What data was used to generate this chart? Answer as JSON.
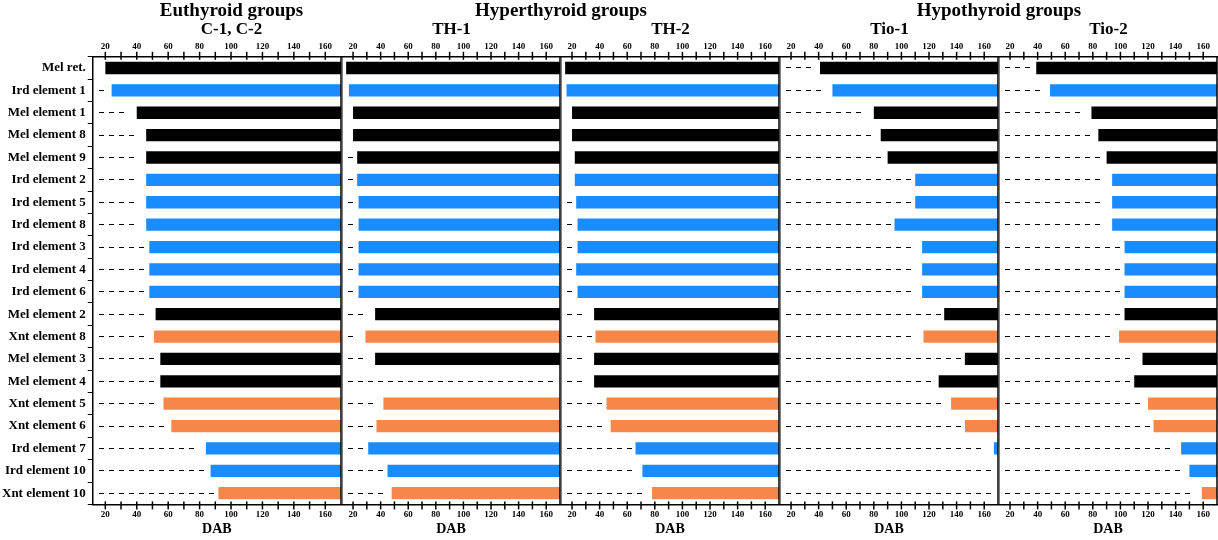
{
  "chart_data": [
    {
      "type": "bar",
      "orientation": "horizontal",
      "title": "Euthyroid groups",
      "subtitle": "C-1, C-2",
      "xlabel": "DAB",
      "categories": [
        "Mel ret.",
        "Ird element 1",
        "Mel element 1",
        "Mel element 8",
        "Mel element 9",
        "Ird element 2",
        "Ird element 5",
        "Ird element 8",
        "Ird element 3",
        "Ird element 4",
        "Ird element 6",
        "Mel element 2",
        "Xnt element 8",
        "Mel element 3",
        "Mel element 4",
        "Xnt element 5",
        "Xnt element 6",
        "Ird element 7",
        "Ird element 10",
        "Xnt element 10"
      ],
      "base": [
        20,
        24,
        40,
        46,
        46,
        46,
        46,
        46,
        48,
        48,
        48,
        52,
        51,
        55,
        55,
        57,
        62,
        84,
        87,
        92
      ],
      "values": [
        150,
        146,
        130,
        124,
        124,
        124,
        124,
        124,
        122,
        122,
        122,
        118,
        119,
        115,
        115,
        113,
        108,
        86,
        83,
        78
      ],
      "colors": [
        "#000000",
        "#1a8cff",
        "#000000",
        "#000000",
        "#000000",
        "#1a8cff",
        "#1a8cff",
        "#1a8cff",
        "#1a8cff",
        "#1a8cff",
        "#1a8cff",
        "#000000",
        "#f5874b",
        "#000000",
        "#000000",
        "#f5874b",
        "#f5874b",
        "#1a8cff",
        "#1a8cff",
        "#f5874b"
      ],
      "xlim": [
        12,
        170
      ],
      "xticks": [
        20,
        {
          "value": 30,
          "label": null
        },
        40,
        {
          "value": 50,
          "label": null
        },
        60,
        {
          "value": 70,
          "label": null
        },
        80,
        {
          "value": 90,
          "label": null
        },
        100,
        {
          "value": 110,
          "label": null
        },
        120,
        {
          "value": 130,
          "label": null
        },
        140,
        {
          "value": 150,
          "label": null
        },
        160
      ],
      "x2lim": [
        12,
        170
      ],
      "x2ticks": [
        20,
        {
          "value": 30,
          "label": null
        },
        40,
        {
          "value": 50,
          "label": null
        },
        60,
        {
          "value": 70,
          "label": null
        },
        80,
        {
          "value": 90,
          "label": null
        },
        100,
        {
          "value": 110,
          "label": null
        },
        120,
        {
          "value": 130,
          "label": null
        },
        140,
        {
          "value": 150,
          "label": null
        },
        160
      ]
    },
    {
      "type": "bar",
      "orientation": "horizontal",
      "title": "Hyperthyroid groups",
      "subtitle": "TH-1",
      "xlabel": "DAB",
      "tick_labels": "x",
      "categories": [
        null,
        null,
        null,
        null,
        null,
        null,
        null,
        null,
        null,
        null,
        null,
        null,
        null,
        null,
        null,
        null,
        null,
        null,
        null,
        null
      ],
      "base": [
        15,
        17,
        20,
        20,
        23,
        23,
        24,
        24,
        24,
        24,
        24,
        36,
        29,
        36,
        null,
        42,
        37,
        31,
        45,
        48
      ],
      "values": [
        155,
        153,
        150,
        150,
        147,
        147,
        146,
        146,
        146,
        146,
        146,
        134,
        141,
        134,
        null,
        128,
        133,
        139,
        125,
        122
      ],
      "colors": [
        "#000000",
        "#1a8cff",
        "#000000",
        "#000000",
        "#000000",
        "#1a8cff",
        "#1a8cff",
        "#1a8cff",
        "#1a8cff",
        "#1a8cff",
        "#1a8cff",
        "#000000",
        "#f5874b",
        "#000000",
        "#000000",
        "#f5874b",
        "#f5874b",
        "#1a8cff",
        "#1a8cff",
        "#f5874b"
      ],
      "xlim": [
        12,
        170
      ],
      "xticks": [
        20,
        {
          "value": 30,
          "label": null
        },
        40,
        {
          "value": 50,
          "label": null
        },
        60,
        {
          "value": 70,
          "label": null
        },
        80,
        {
          "value": 90,
          "label": null
        },
        100,
        {
          "value": 110,
          "label": null
        },
        120,
        {
          "value": 130,
          "label": null
        },
        140,
        {
          "value": 150,
          "label": null
        },
        160
      ],
      "x2lim": [
        12,
        170
      ],
      "x2ticks": [
        20,
        {
          "value": 30,
          "label": null
        },
        40,
        {
          "value": 50,
          "label": null
        },
        60,
        {
          "value": 70,
          "label": null
        },
        80,
        {
          "value": 90,
          "label": null
        },
        100,
        {
          "value": 110,
          "label": null
        },
        120,
        {
          "value": 130,
          "label": null
        },
        140,
        {
          "value": 150,
          "label": null
        },
        160
      ]
    },
    {
      "type": "bar",
      "orientation": "horizontal",
      "subtitle": "TH-2",
      "xlabel": "DAB",
      "tick_labels": "x",
      "categories": [
        null,
        null,
        null,
        null,
        null,
        null,
        null,
        null,
        null,
        null,
        null,
        null,
        null,
        null,
        null,
        null,
        null,
        null,
        null,
        null
      ],
      "base": [
        15,
        16,
        20,
        20,
        22,
        22,
        23,
        24,
        24,
        23,
        24,
        36,
        37,
        36,
        36,
        45,
        48,
        66,
        71,
        78
      ],
      "values": [
        155,
        154,
        150,
        150,
        148,
        148,
        147,
        146,
        146,
        147,
        146,
        134,
        133,
        134,
        134,
        125,
        122,
        104,
        99,
        92
      ],
      "colors": [
        "#000000",
        "#1a8cff",
        "#000000",
        "#000000",
        "#000000",
        "#1a8cff",
        "#1a8cff",
        "#1a8cff",
        "#1a8cff",
        "#1a8cff",
        "#1a8cff",
        "#000000",
        "#f5874b",
        "#000000",
        "#000000",
        "#f5874b",
        "#f5874b",
        "#1a8cff",
        "#1a8cff",
        "#f5874b"
      ],
      "xlim": [
        12,
        170
      ],
      "xticks": [
        20,
        {
          "value": 30,
          "label": null
        },
        40,
        {
          "value": 50,
          "label": null
        },
        60,
        {
          "value": 70,
          "label": null
        },
        80,
        {
          "value": 90,
          "label": null
        },
        100,
        {
          "value": 110,
          "label": null
        },
        120,
        {
          "value": 130,
          "label": null
        },
        140,
        {
          "value": 150,
          "label": null
        },
        160
      ],
      "x2lim": [
        12,
        170
      ],
      "x2ticks": [
        20,
        {
          "value": 30,
          "label": null
        },
        40,
        {
          "value": 50,
          "label": null
        },
        60,
        {
          "value": 70,
          "label": null
        },
        80,
        {
          "value": 90,
          "label": null
        },
        100,
        {
          "value": 110,
          "label": null
        },
        120,
        {
          "value": 130,
          "label": null
        },
        140,
        {
          "value": 150,
          "label": null
        },
        160
      ]
    },
    {
      "type": "bar",
      "orientation": "horizontal",
      "title": "Hypothyroid groups",
      "subtitle": "Tio-1",
      "xlabel": "DAB",
      "tick_labels": "x",
      "categories": [
        null,
        null,
        null,
        null,
        null,
        null,
        null,
        null,
        null,
        null,
        null,
        null,
        null,
        null,
        null,
        null,
        null,
        null,
        null,
        null
      ],
      "base": [
        41,
        50,
        80,
        85,
        90,
        110,
        110,
        95,
        115,
        115,
        115,
        131,
        116,
        146,
        127,
        136,
        146,
        167,
        null,
        null
      ],
      "values": [
        129,
        120,
        90,
        85,
        80,
        60,
        60,
        75,
        55,
        55,
        55,
        39,
        54,
        24,
        43,
        34,
        24,
        3,
        null,
        null
      ],
      "colors": [
        "#000000",
        "#1a8cff",
        "#000000",
        "#000000",
        "#000000",
        "#1a8cff",
        "#1a8cff",
        "#1a8cff",
        "#1a8cff",
        "#1a8cff",
        "#1a8cff",
        "#000000",
        "#f5874b",
        "#000000",
        "#000000",
        "#f5874b",
        "#f5874b",
        "#1a8cff",
        "#1a8cff",
        "#f5874b"
      ],
      "xlim": [
        12,
        170
      ],
      "xticks": [
        20,
        {
          "value": 30,
          "label": null
        },
        40,
        {
          "value": 50,
          "label": null
        },
        60,
        {
          "value": 70,
          "label": null
        },
        80,
        {
          "value": 90,
          "label": null
        },
        100,
        {
          "value": 110,
          "label": null
        },
        120,
        {
          "value": 130,
          "label": null
        },
        140,
        {
          "value": 150,
          "label": null
        },
        160
      ],
      "x2lim": [
        12,
        170
      ],
      "x2ticks": [
        20,
        {
          "value": 30,
          "label": null
        },
        40,
        {
          "value": 50,
          "label": null
        },
        60,
        {
          "value": 70,
          "label": null
        },
        80,
        {
          "value": 90,
          "label": null
        },
        100,
        {
          "value": 110,
          "label": null
        },
        120,
        {
          "value": 130,
          "label": null
        },
        140,
        {
          "value": 150,
          "label": null
        },
        160
      ]
    },
    {
      "type": "bar",
      "orientation": "horizontal",
      "subtitle": "Tio-2",
      "xlabel": "DAB",
      "tick_labels": "x",
      "categories": [
        null,
        null,
        null,
        null,
        null,
        null,
        null,
        null,
        null,
        null,
        null,
        null,
        null,
        null,
        null,
        null,
        null,
        null,
        null,
        null
      ],
      "base": [
        39,
        49,
        79,
        84,
        90,
        94,
        94,
        94,
        103,
        103,
        103,
        103,
        99,
        116,
        110,
        120,
        124,
        144,
        150,
        159
      ],
      "values": [
        131,
        121,
        91,
        86,
        80,
        76,
        76,
        76,
        67,
        67,
        67,
        67,
        71,
        54,
        60,
        50,
        46,
        26,
        20,
        11
      ],
      "colors": [
        "#000000",
        "#1a8cff",
        "#000000",
        "#000000",
        "#000000",
        "#1a8cff",
        "#1a8cff",
        "#1a8cff",
        "#1a8cff",
        "#1a8cff",
        "#1a8cff",
        "#000000",
        "#f5874b",
        "#000000",
        "#000000",
        "#f5874b",
        "#f5874b",
        "#1a8cff",
        "#1a8cff",
        "#f5874b"
      ],
      "xlim": [
        12,
        170
      ],
      "xticks": [
        20,
        {
          "value": 30,
          "label": null
        },
        40,
        {
          "value": 50,
          "label": null
        },
        60,
        {
          "value": 70,
          "label": null
        },
        80,
        {
          "value": 90,
          "label": null
        },
        100,
        {
          "value": 110,
          "label": null
        },
        120,
        {
          "value": 130,
          "label": null
        },
        140,
        {
          "value": 150,
          "label": null
        },
        160
      ],
      "x2lim": [
        12,
        170
      ],
      "x2ticks": [
        20,
        {
          "value": 30,
          "label": null
        },
        40,
        {
          "value": 50,
          "label": null
        },
        60,
        {
          "value": 70,
          "label": null
        },
        80,
        {
          "value": 90,
          "label": null
        },
        100,
        {
          "value": 110,
          "label": null
        },
        120,
        {
          "value": 130,
          "label": null
        },
        140,
        {
          "value": 150,
          "label": null
        },
        160
      ]
    }
  ]
}
